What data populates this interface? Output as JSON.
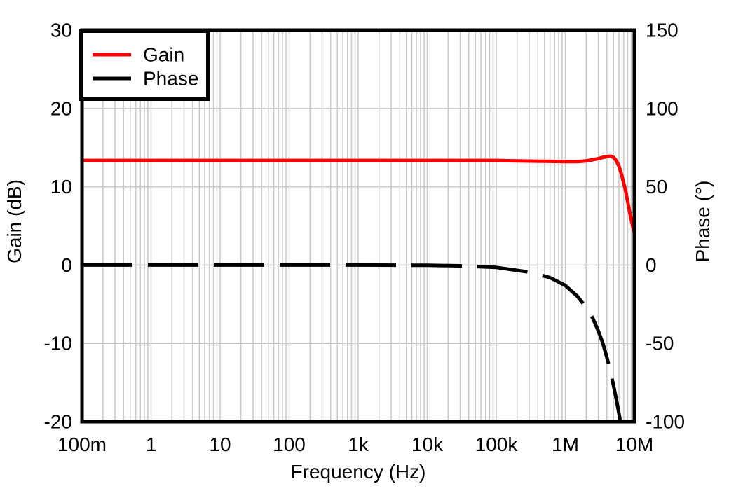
{
  "chart_data": {
    "type": "line",
    "title": "",
    "xlabel": "Frequency (Hz)",
    "ylabel_left": "Gain (dB)",
    "ylabel_right": "Phase (°)",
    "x_axis": {
      "scale": "log",
      "min": 0.1,
      "max": 10000000,
      "tick_values": [
        0.1,
        1,
        10,
        100,
        1000,
        10000,
        100000,
        1000000,
        10000000
      ],
      "tick_labels": [
        "100m",
        "1",
        "10",
        "100",
        "1k",
        "10k",
        "100k",
        "1M",
        "10M"
      ]
    },
    "y_left_axis": {
      "min": -20,
      "max": 30,
      "ticks": [
        30,
        20,
        10,
        0,
        -10,
        -20
      ]
    },
    "y_right_axis": {
      "min": -100,
      "max": 150,
      "ticks": [
        150,
        100,
        50,
        0,
        -50,
        -100
      ]
    },
    "grid": {
      "show": true,
      "color": "#c9c9c9",
      "minor_log_vertical": true,
      "horizontal_major_only": true
    },
    "legend": {
      "position": "top-left"
    },
    "colors": {
      "gain": "#ff0000",
      "phase": "#000000",
      "border": "#000000",
      "background": "#ffffff"
    },
    "series": [
      {
        "name": "Gain",
        "axis": "left",
        "color": "#ff0000",
        "line_style": "solid",
        "points": [
          [
            0.1,
            13.35
          ],
          [
            1,
            13.35
          ],
          [
            10,
            13.35
          ],
          [
            100,
            13.35
          ],
          [
            1000,
            13.35
          ],
          [
            10000,
            13.35
          ],
          [
            100000,
            13.35
          ],
          [
            200000,
            13.3
          ],
          [
            500000,
            13.25
          ],
          [
            1000000,
            13.2
          ],
          [
            1500000,
            13.2
          ],
          [
            2000000,
            13.3
          ],
          [
            2500000,
            13.45
          ],
          [
            3000000,
            13.6
          ],
          [
            3500000,
            13.75
          ],
          [
            4000000,
            13.85
          ],
          [
            4500000,
            13.9
          ],
          [
            5000000,
            13.75
          ],
          [
            5500000,
            13.3
          ],
          [
            6000000,
            12.6
          ],
          [
            6500000,
            11.6
          ],
          [
            7000000,
            10.5
          ],
          [
            7500000,
            9.4
          ],
          [
            8000000,
            8.1
          ],
          [
            8500000,
            6.9
          ],
          [
            9000000,
            5.8
          ],
          [
            9500000,
            4.9
          ],
          [
            10000000,
            4.1
          ]
        ]
      },
      {
        "name": "Phase",
        "axis": "right",
        "color": "#000000",
        "line_style": "dashed",
        "points": [
          [
            0.1,
            0
          ],
          [
            1,
            0
          ],
          [
            10,
            0
          ],
          [
            100,
            0
          ],
          [
            1000,
            0
          ],
          [
            10000,
            -0.2
          ],
          [
            30000,
            -0.5
          ],
          [
            100000,
            -1.5
          ],
          [
            300000,
            -4.5
          ],
          [
            600000,
            -8
          ],
          [
            1000000,
            -13
          ],
          [
            1500000,
            -20
          ],
          [
            2000000,
            -27
          ],
          [
            2500000,
            -34
          ],
          [
            3000000,
            -42
          ],
          [
            3500000,
            -50
          ],
          [
            4000000,
            -59
          ],
          [
            4500000,
            -68
          ],
          [
            5000000,
            -77
          ],
          [
            5500000,
            -86
          ],
          [
            6000000,
            -95
          ],
          [
            6500000,
            -104
          ]
        ]
      }
    ]
  }
}
